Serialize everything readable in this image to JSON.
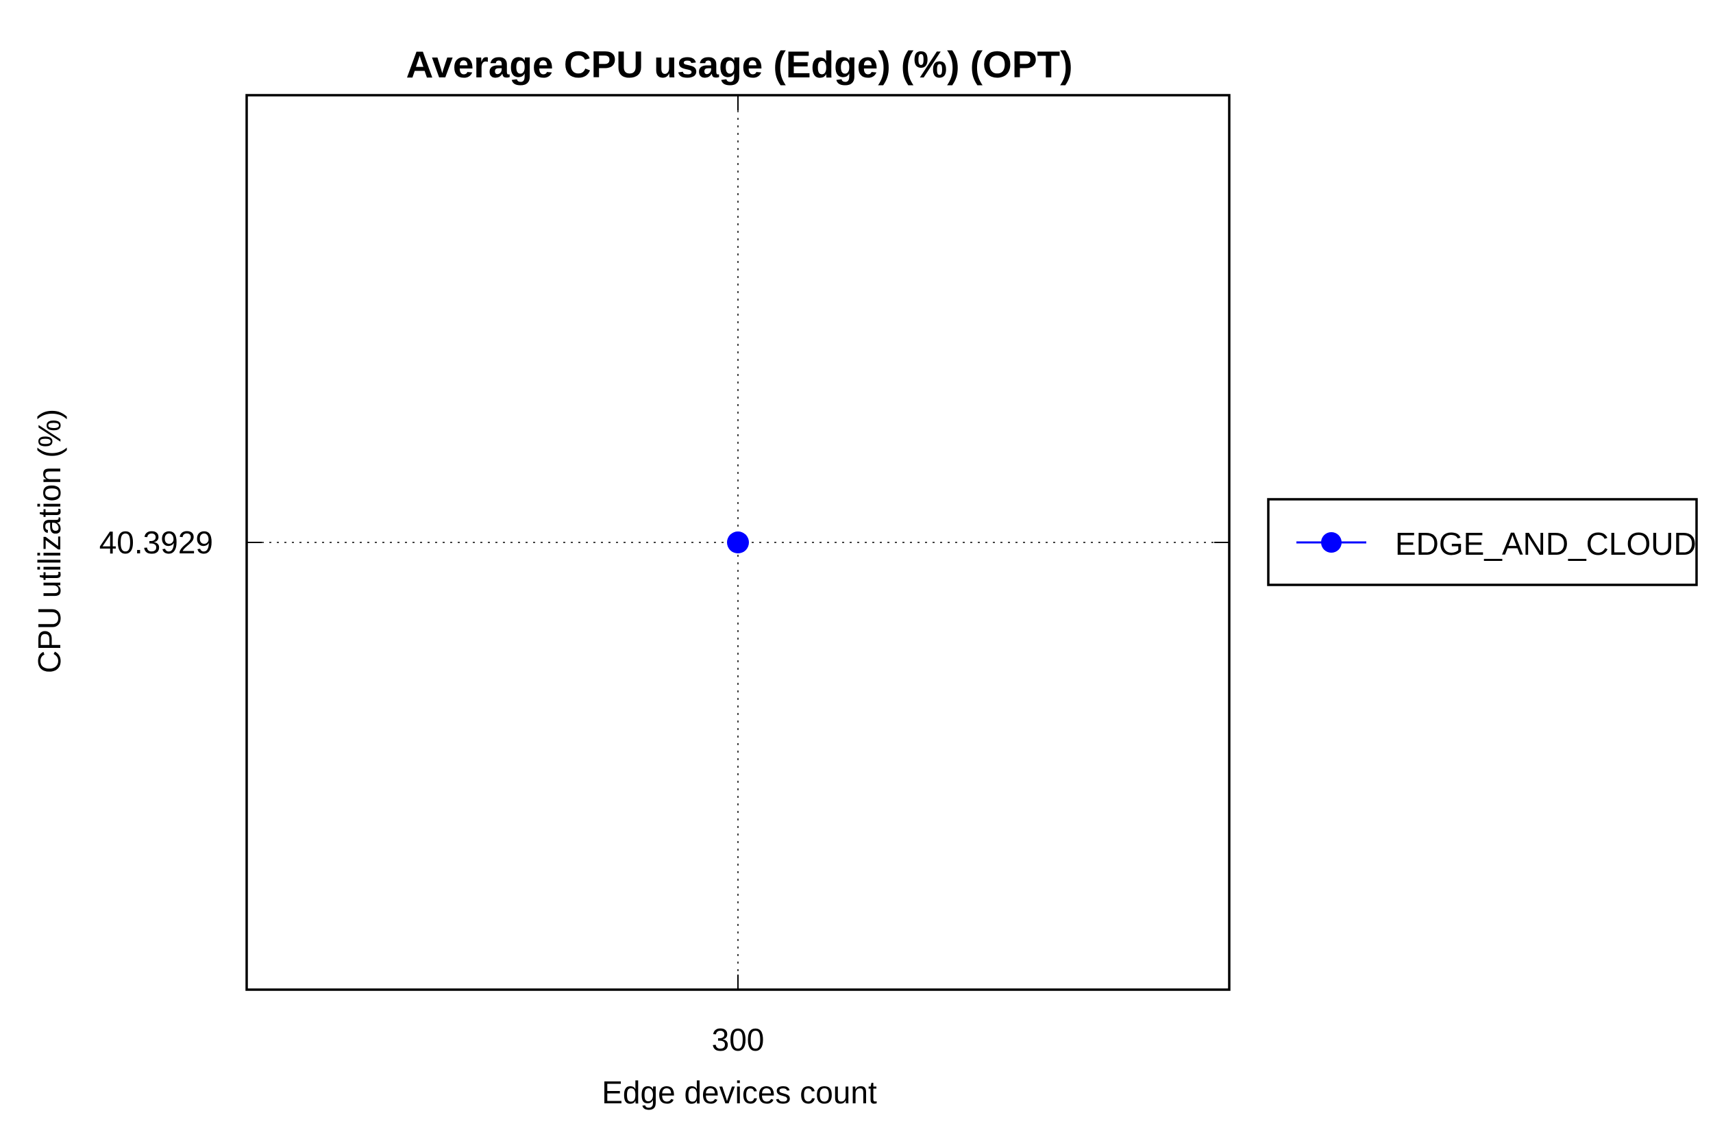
{
  "chart_data": {
    "type": "line",
    "title": "Average CPU usage (Edge) (%) (OPT)",
    "xlabel": "Edge devices count",
    "ylabel": "CPU utilization (%)",
    "x": [
      300
    ],
    "x_tick_labels": [
      "300"
    ],
    "y_tick_values": [
      40.3929
    ],
    "y_tick_labels": [
      "40.3929"
    ],
    "xlim": [
      299,
      301
    ],
    "ylim": [
      39.3929,
      41.3929
    ],
    "grid": true,
    "legend_position": "right",
    "series": [
      {
        "name": "EDGE_AND_CLOUD",
        "color": "#0000ff",
        "marker": "filled-circle",
        "x": [
          300
        ],
        "values": [
          40.3929
        ]
      }
    ]
  }
}
